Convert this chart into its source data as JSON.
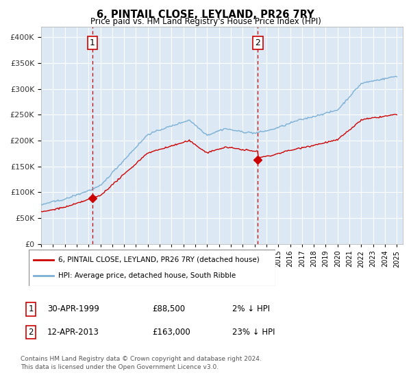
{
  "title": "6, PINTAIL CLOSE, LEYLAND, PR26 7RY",
  "subtitle": "Price paid vs. HM Land Registry's House Price Index (HPI)",
  "background_color": "#ffffff",
  "chart_bg_color": "#dce9f5",
  "grid_color": "#ffffff",
  "hpi_color": "#7bafd4",
  "price_color": "#cc0000",
  "dashed_color": "#cc0000",
  "purchase1_date": 1999.33,
  "purchase1_price": 88500,
  "purchase1_label": "1",
  "purchase2_date": 2013.28,
  "purchase2_price": 163000,
  "purchase2_label": "2",
  "ylim_min": 0,
  "ylim_max": 420000,
  "xlim_min": 1995,
  "xlim_max": 2025.5,
  "legend_line1": "6, PINTAIL CLOSE, LEYLAND, PR26 7RY (detached house)",
  "legend_line2": "HPI: Average price, detached house, South Ribble",
  "table_row1_num": "1",
  "table_row1_date": "30-APR-1999",
  "table_row1_price": "£88,500",
  "table_row1_hpi": "2% ↓ HPI",
  "table_row2_num": "2",
  "table_row2_date": "12-APR-2013",
  "table_row2_price": "£163,000",
  "table_row2_hpi": "23% ↓ HPI",
  "footnote1": "Contains HM Land Registry data © Crown copyright and database right 2024.",
  "footnote2": "This data is licensed under the Open Government Licence v3.0."
}
